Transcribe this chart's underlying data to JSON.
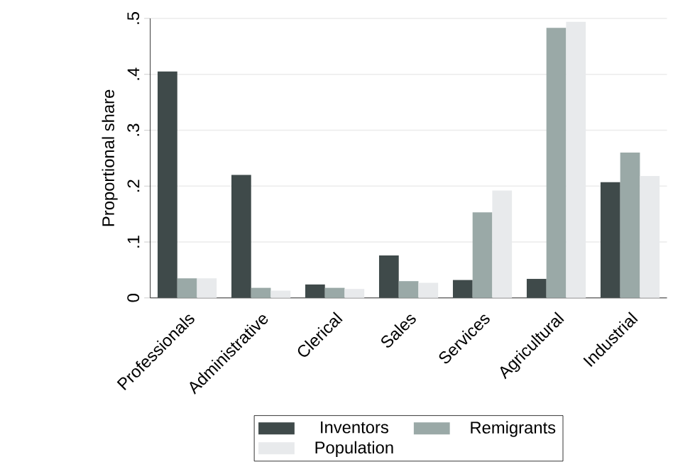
{
  "chart_data": {
    "type": "bar",
    "ylabel": "Proportional share",
    "categories": [
      "Professionals",
      "Administrative",
      "Clerical",
      "Sales",
      "Services",
      "Agricultural",
      "Industrial"
    ],
    "series": [
      {
        "name": "Inventors",
        "color": "#3f4a4a",
        "values": [
          0.405,
          0.22,
          0.024,
          0.076,
          0.032,
          0.034,
          0.207
        ]
      },
      {
        "name": "Remigrants",
        "color": "#9aa9a7",
        "values": [
          0.035,
          0.018,
          0.018,
          0.03,
          0.153,
          0.483,
          0.26
        ]
      },
      {
        "name": "Population",
        "color": "#e8eaec",
        "values": [
          0.035,
          0.013,
          0.016,
          0.027,
          0.192,
          0.494,
          0.218
        ]
      }
    ],
    "ylim": [
      0,
      0.5
    ],
    "yticks": [
      {
        "value": 0,
        "label": "0"
      },
      {
        "value": 0.1,
        "label": ".1"
      },
      {
        "value": 0.2,
        "label": ".2"
      },
      {
        "value": 0.3,
        "label": ".3"
      },
      {
        "value": 0.4,
        "label": ".4"
      },
      {
        "value": 0.5,
        "label": ".5"
      }
    ],
    "grid": "y",
    "legend": "bottom"
  }
}
